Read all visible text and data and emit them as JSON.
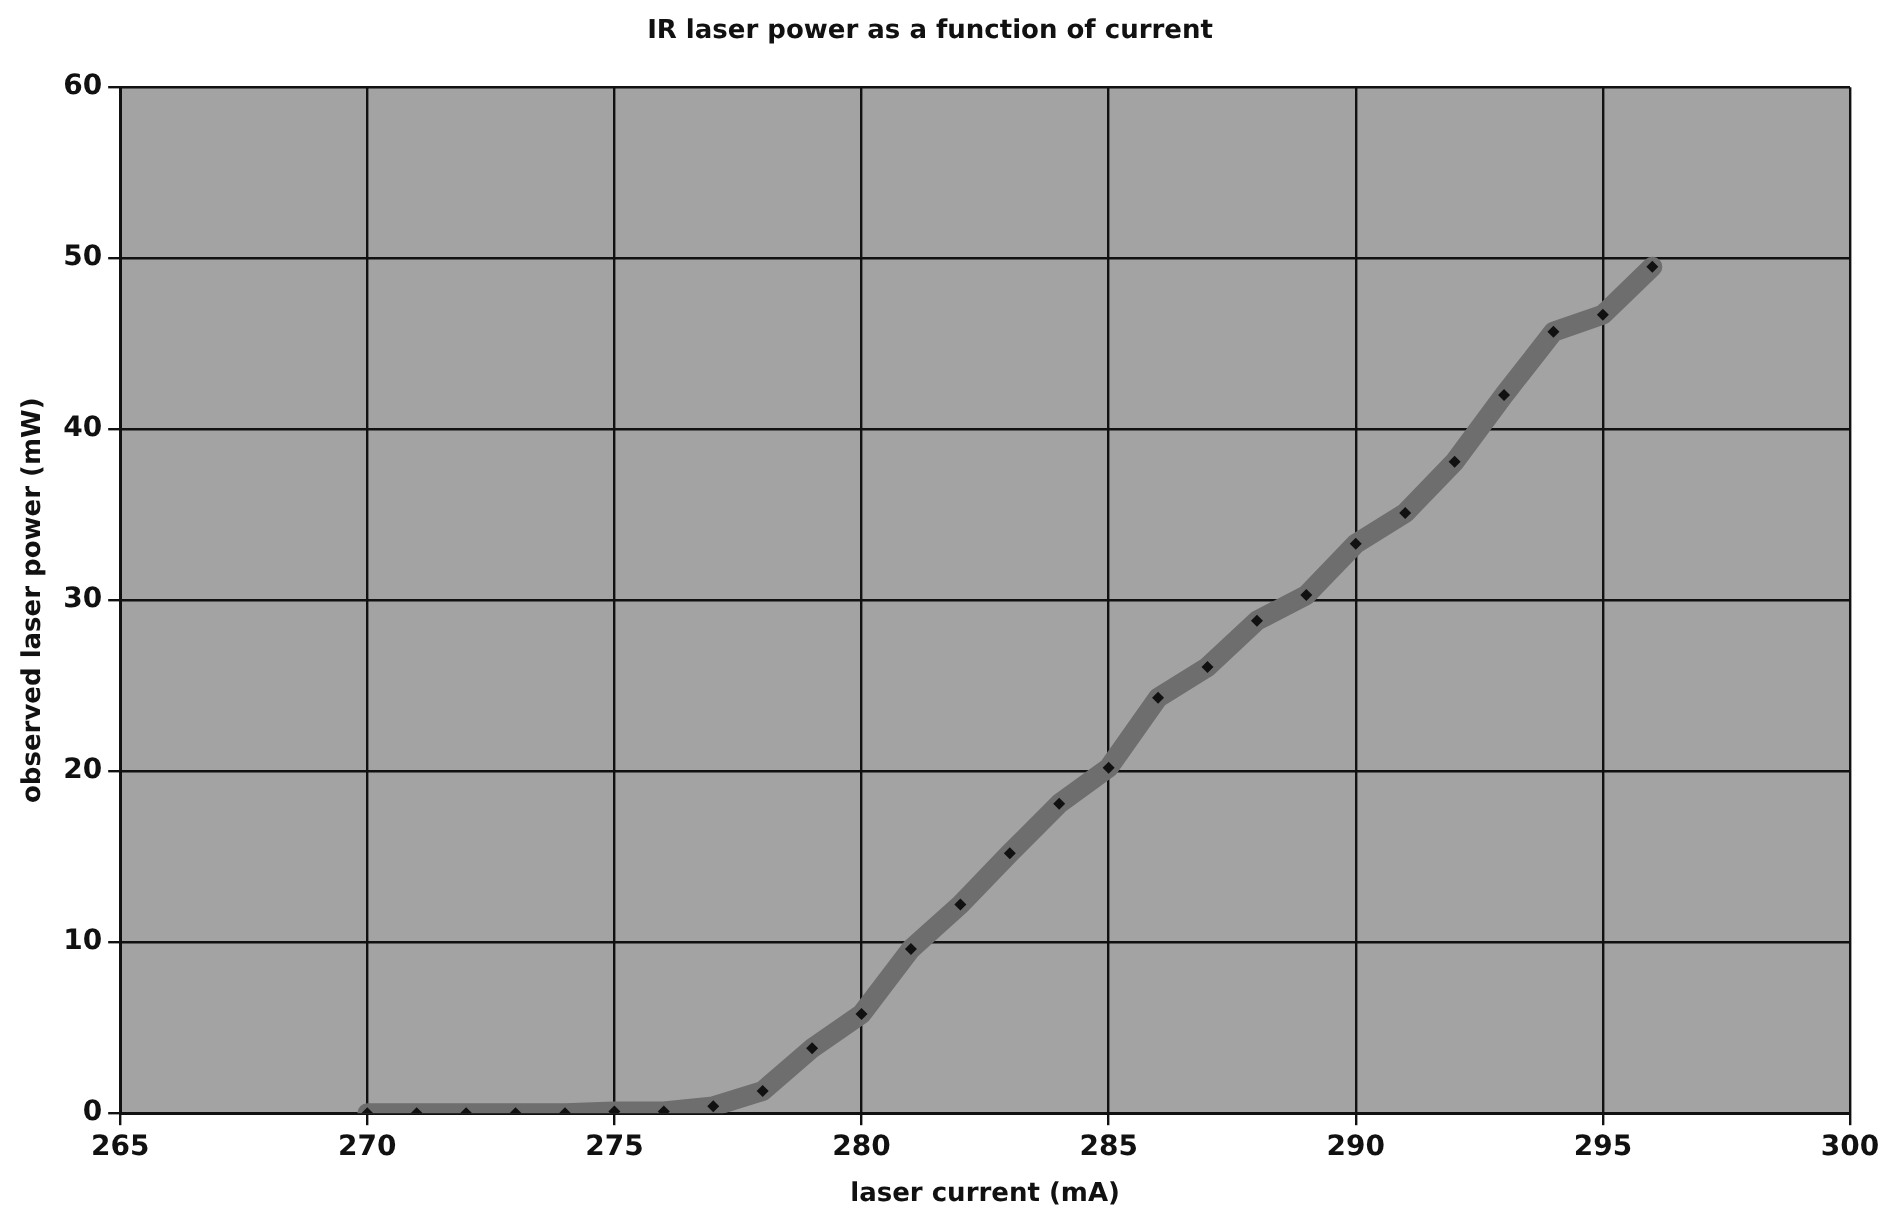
{
  "chart_data": {
    "type": "line",
    "title": "IR laser power as a function of current",
    "xlabel": "laser current (mA)",
    "ylabel": "observed laser power (mW)",
    "x": [
      270,
      271,
      272,
      273,
      274,
      275,
      276,
      277,
      278,
      279,
      280,
      281,
      282,
      283,
      284,
      285,
      286,
      287,
      288,
      289,
      290,
      291,
      292,
      293,
      294,
      295,
      296
    ],
    "series": [
      {
        "color": "#6e6e6e",
        "values": [
          0,
          0,
          0,
          0,
          0,
          0.1,
          0.1,
          0.4,
          1.3,
          3.8,
          5.8,
          9.6,
          12.2,
          15.2,
          18.1,
          20.2,
          24.3,
          26.1,
          28.8,
          30.3,
          33.3,
          35.1,
          38.1,
          42.0,
          45.7,
          46.7,
          49.5
        ]
      }
    ],
    "xlim": [
      265,
      300
    ],
    "xticks": [
      265,
      270,
      275,
      280,
      285,
      290,
      295,
      300
    ],
    "ylim": [
      0,
      60
    ],
    "yticks": [
      0,
      10,
      20,
      30,
      40,
      50,
      60
    ],
    "grid": true,
    "legend": false,
    "marker": "diamond",
    "line_style": "solid"
  }
}
